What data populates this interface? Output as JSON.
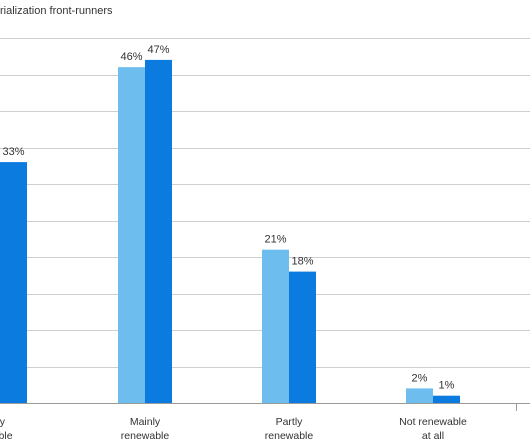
{
  "legend": {
    "visible_text": "rialization front-runners"
  },
  "colors": {
    "series_1": "#6dbdee",
    "series_2": "#0b7be0"
  },
  "chart_data": {
    "type": "bar",
    "categories": [
      [
        "lly",
        "vable"
      ],
      [
        "Mainly",
        "renewable"
      ],
      [
        "Partly",
        "renewable"
      ],
      [
        "Not renewable",
        "at all"
      ]
    ],
    "series": [
      {
        "values": [
          null,
          46,
          21,
          2
        ],
        "labels": [
          "",
          "46%",
          "21%",
          "2%"
        ]
      },
      {
        "values": [
          33,
          47,
          18,
          1
        ],
        "labels": [
          "33%",
          "47%",
          "18%",
          "1%"
        ]
      }
    ],
    "ylim": [
      0,
      50
    ],
    "grid": true
  }
}
